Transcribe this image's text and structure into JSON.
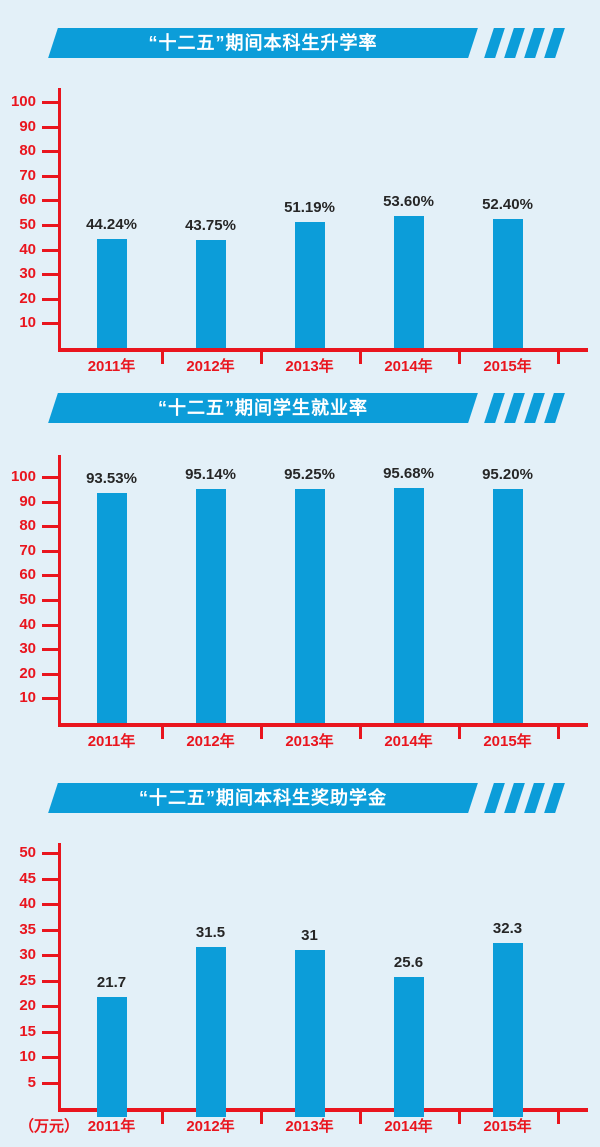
{
  "colors": {
    "background": "#e3f0f8",
    "bar_blue": "#0c9dd9",
    "banner_blue": "#0c9dd9",
    "axis_red": "#e9151e",
    "value_label_ink": "#262626",
    "banner_text": "#ffffff"
  },
  "chart_data": [
    {
      "type": "bar",
      "title": "“十二五”期间本科生升学率",
      "categories": [
        "2011年",
        "2012年",
        "2013年",
        "2014年",
        "2015年"
      ],
      "values": [
        44.24,
        43.75,
        51.19,
        53.6,
        52.4
      ],
      "value_labels": [
        "44.24%",
        "43.75%",
        "51.19%",
        "53.60%",
        "52.40%"
      ],
      "y_ticks": [
        10,
        20,
        30,
        40,
        50,
        60,
        70,
        80,
        90,
        100
      ],
      "ylim": [
        0,
        105
      ],
      "xlabel": "",
      "ylabel": "",
      "unit_label": "",
      "grid": false,
      "legend": "none"
    },
    {
      "type": "bar",
      "title": "“十二五”期间学生就业率",
      "categories": [
        "2011年",
        "2012年",
        "2013年",
        "2014年",
        "2015年"
      ],
      "values": [
        93.53,
        95.14,
        95.25,
        95.68,
        95.2
      ],
      "value_labels": [
        "93.53%",
        "95.14%",
        "95.25%",
        "95.68%",
        "95.20%"
      ],
      "y_ticks": [
        10,
        20,
        30,
        40,
        50,
        60,
        70,
        80,
        90,
        100
      ],
      "ylim": [
        0,
        105
      ],
      "xlabel": "",
      "ylabel": "",
      "unit_label": "",
      "grid": false,
      "legend": "none"
    },
    {
      "type": "bar",
      "title": "“十二五”期间本科生奖助学金",
      "categories": [
        "2011年",
        "2012年",
        "2013年",
        "2014年",
        "2015年"
      ],
      "values": [
        21.7,
        31.5,
        31,
        25.6,
        32.3
      ],
      "value_labels": [
        "21.7",
        "31.5",
        "31",
        "25.6",
        "32.3"
      ],
      "y_ticks": [
        5,
        10,
        15,
        20,
        25,
        30,
        35,
        40,
        45,
        50
      ],
      "ylim": [
        0,
        52
      ],
      "xlabel": "",
      "ylabel": "万元",
      "unit_label": "（万元）",
      "grid": false,
      "legend": "none"
    }
  ]
}
